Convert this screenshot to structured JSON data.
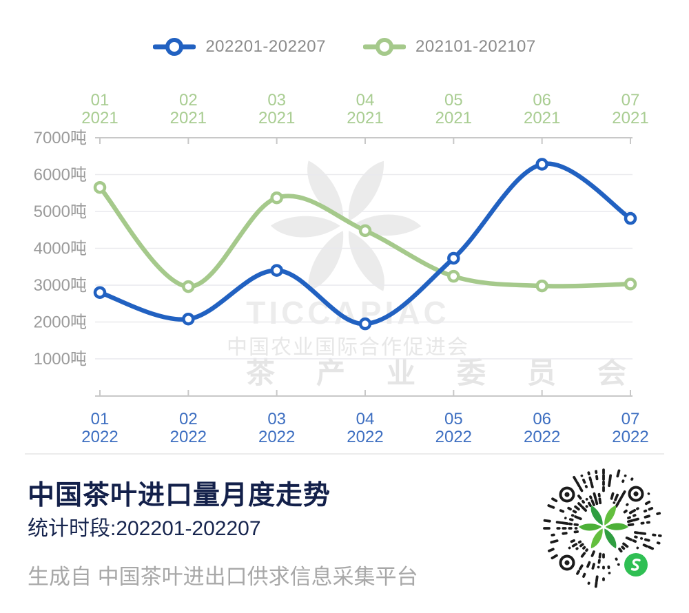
{
  "legend": {
    "items": [
      {
        "label": "202201-202207"
      },
      {
        "label": "202101-202107"
      }
    ]
  },
  "chart_data": {
    "type": "line",
    "top_axis": {
      "months": [
        "01",
        "02",
        "03",
        "04",
        "05",
        "06",
        "07"
      ],
      "year": "2021",
      "label_color": "#a9cd92"
    },
    "bottom_axis": {
      "months": [
        "01",
        "02",
        "03",
        "04",
        "05",
        "06",
        "07"
      ],
      "year": "2022",
      "label_color": "#3e6fc1"
    },
    "y_ticks": [
      7000,
      6000,
      5000,
      4000,
      3000,
      2000,
      1000
    ],
    "y_unit": "吨",
    "ylim": [
      1000,
      7000
    ],
    "series": [
      {
        "name": "202201-202207",
        "color": "#2161c1",
        "values": [
          2800,
          2080,
          3400,
          1950,
          3730,
          6280,
          4810
        ]
      },
      {
        "name": "202101-202107",
        "color": "#a5c98b",
        "values": [
          5650,
          2960,
          5370,
          4480,
          3240,
          2980,
          3030
        ]
      }
    ],
    "grid": true,
    "legend_position": "top",
    "watermark": {
      "line1": "TICCAPIAC",
      "line2": "中国农业国际合作促进会",
      "line3": "茶产业委员会"
    }
  },
  "info": {
    "title": "中国茶叶进口量月度走势",
    "subtitle": "统计时段:202201-202207",
    "source": "生成自 中国茶叶进出口供求信息采集平台"
  },
  "qr": {
    "dot_color": "#1b1b1b",
    "badge_color": "#2fbf53",
    "leaf_colors": [
      "#4cb038",
      "#2f9e41",
      "#63bf3e"
    ]
  },
  "colors": {
    "grid_line": "#e9e9ed",
    "axis_line": "#c8c8c8",
    "y_label": "#9b9b9b",
    "legend_text": "#8b8b8b",
    "watermark": "#ebebeb",
    "title_text": "#13204a"
  }
}
